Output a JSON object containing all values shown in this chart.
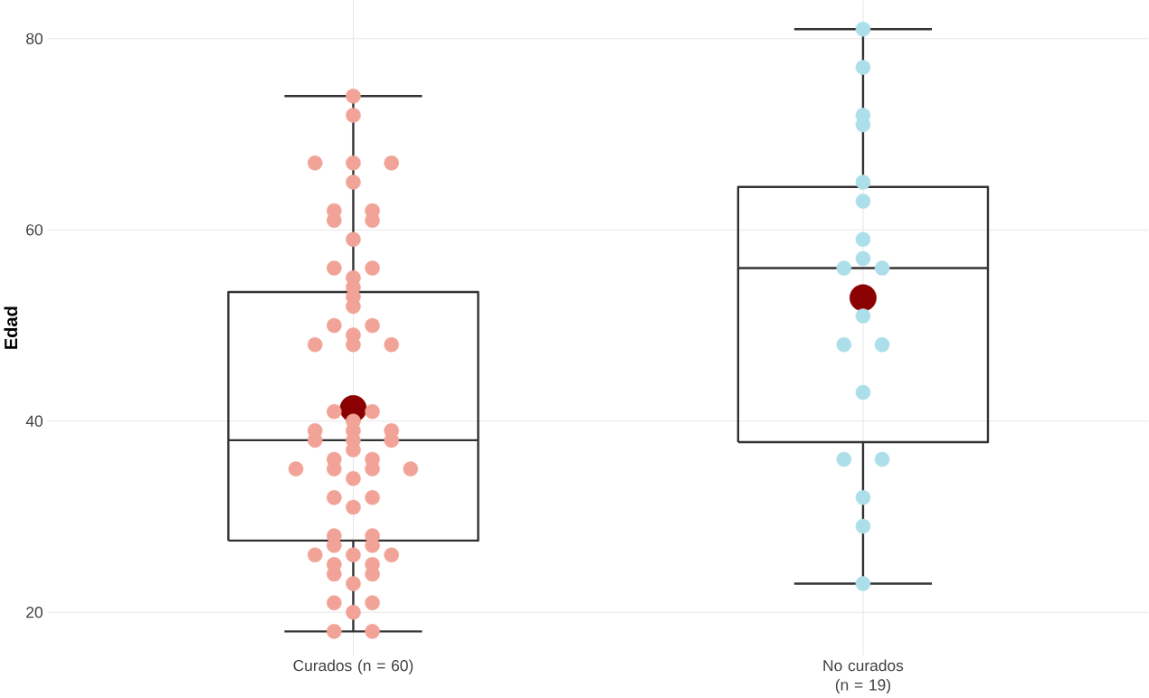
{
  "chart_data": {
    "type": "box",
    "ylabel": "Edad",
    "categories": [
      "Curados (n = 60)",
      "No curados (n = 19)"
    ],
    "boxes": [
      {
        "low": 18,
        "q1": 27.5,
        "median": 38,
        "q3": 53.5,
        "high": 74,
        "mean": 41.3
      },
      {
        "low": 23,
        "q1": 37.8,
        "median": 56,
        "q3": 64.5,
        "high": 81,
        "mean": 52.9
      }
    ],
    "series": [
      {
        "type": "scatter",
        "color": "#f2a397",
        "x": [
          "Curados (n = 60)",
          "Curados (n = 60)",
          "Curados (n = 60)",
          "Curados (n = 60)",
          "Curados (n = 60)",
          "Curados (n = 60)",
          "Curados (n = 60)",
          "Curados (n = 60)",
          "Curados (n = 60)",
          "Curados (n = 60)",
          "Curados (n = 60)",
          "Curados (n = 60)",
          "Curados (n = 60)",
          "Curados (n = 60)",
          "Curados (n = 60)",
          "Curados (n = 60)",
          "Curados (n = 60)",
          "Curados (n = 60)",
          "Curados (n = 60)",
          "Curados (n = 60)",
          "Curados (n = 60)",
          "Curados (n = 60)",
          "Curados (n = 60)",
          "Curados (n = 60)",
          "Curados (n = 60)",
          "Curados (n = 60)",
          "Curados (n = 60)",
          "Curados (n = 60)",
          "Curados (n = 60)",
          "Curados (n = 60)",
          "Curados (n = 60)",
          "Curados (n = 60)",
          "Curados (n = 60)",
          "Curados (n = 60)",
          "Curados (n = 60)",
          "Curados (n = 60)",
          "Curados (n = 60)",
          "Curados (n = 60)",
          "Curados (n = 60)",
          "Curados (n = 60)",
          "Curados (n = 60)",
          "Curados (n = 60)",
          "Curados (n = 60)",
          "Curados (n = 60)",
          "Curados (n = 60)",
          "Curados (n = 60)",
          "Curados (n = 60)",
          "Curados (n = 60)",
          "Curados (n = 60)",
          "Curados (n = 60)",
          "Curados (n = 60)",
          "Curados (n = 60)",
          "Curados (n = 60)",
          "Curados (n = 60)",
          "Curados (n = 60)",
          "Curados (n = 60)",
          "Curados (n = 60)",
          "Curados (n = 60)",
          "Curados (n = 60)",
          "Curados (n = 60)"
        ],
        "values": [
          74,
          72,
          67,
          67,
          67,
          65,
          62,
          62,
          61,
          61,
          59,
          56,
          56,
          55,
          54,
          53,
          52,
          50,
          50,
          49,
          48,
          48,
          48,
          41,
          41,
          40,
          39,
          39,
          39,
          38,
          38,
          38,
          37,
          36,
          36,
          35,
          35,
          35,
          35,
          34,
          32,
          32,
          31,
          28,
          28,
          27,
          27,
          26,
          26,
          26,
          25,
          25,
          24,
          24,
          23,
          21,
          21,
          20,
          18,
          18
        ]
      },
      {
        "type": "scatter",
        "color": "#addfea",
        "x": [
          "No curados (n = 19)",
          "No curados (n = 19)",
          "No curados (n = 19)",
          "No curados (n = 19)",
          "No curados (n = 19)",
          "No curados (n = 19)",
          "No curados (n = 19)",
          "No curados (n = 19)",
          "No curados (n = 19)",
          "No curados (n = 19)",
          "No curados (n = 19)",
          "No curados (n = 19)",
          "No curados (n = 19)",
          "No curados (n = 19)",
          "No curados (n = 19)",
          "No curados (n = 19)",
          "No curados (n = 19)",
          "No curados (n = 19)",
          "No curados (n = 19)"
        ],
        "values": [
          81,
          77,
          72,
          71,
          65,
          63,
          59,
          57,
          56,
          56,
          51,
          48,
          48,
          43,
          36,
          36,
          32,
          29,
          23
        ]
      }
    ],
    "ylim": [
      15.5,
      84
    ],
    "yticks": [
      20,
      40,
      60,
      80
    ],
    "grid": true
  }
}
